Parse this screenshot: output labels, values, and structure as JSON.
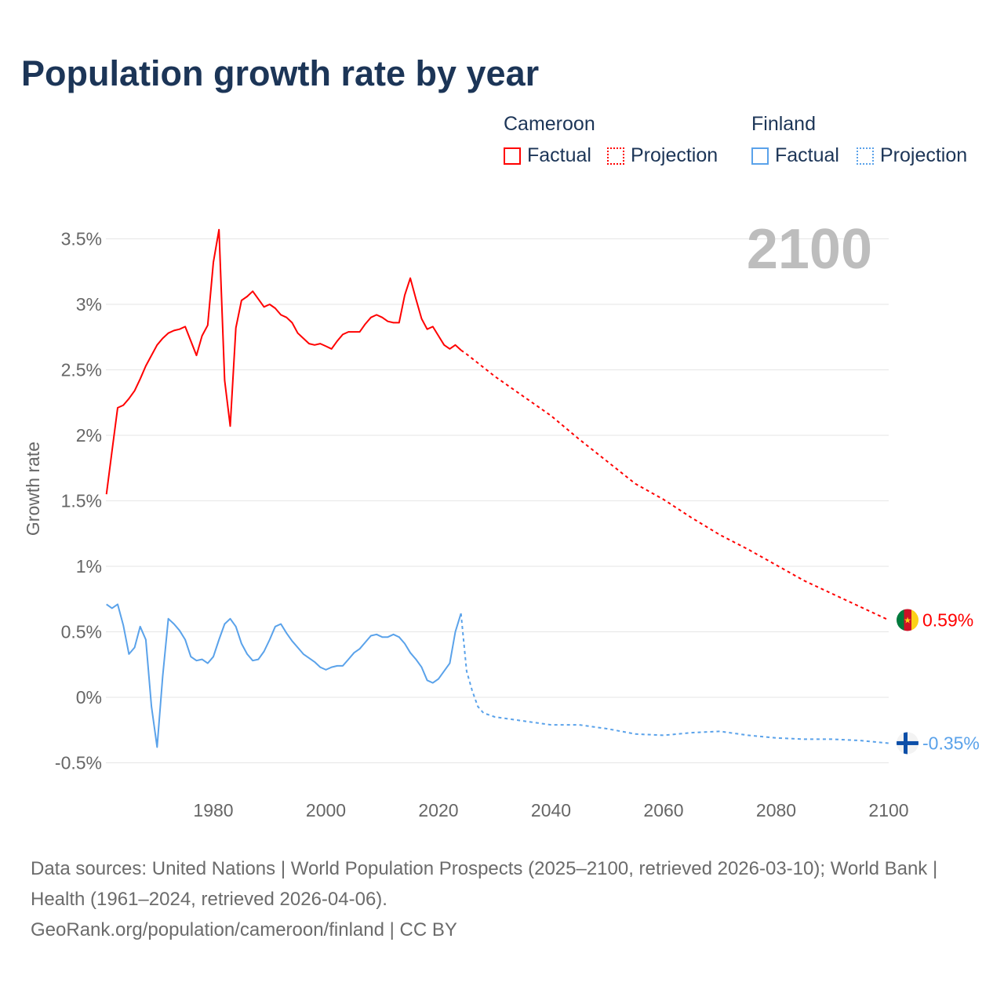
{
  "title": "Population growth rate by year",
  "legend": {
    "groups": [
      {
        "name": "Cameroon",
        "factual": "Factual",
        "projection": "Projection",
        "color": "#ff0000"
      },
      {
        "name": "Finland",
        "factual": "Factual",
        "projection": "Projection",
        "color": "#5aa2ea"
      }
    ]
  },
  "chart_data": {
    "type": "line",
    "title": "Population growth rate by year",
    "ylabel": "Growth rate",
    "xlabel": "",
    "xlim": [
      1961,
      2100
    ],
    "ylim": [
      -0.6,
      3.75
    ],
    "yticks": [
      -0.5,
      0,
      0.5,
      1,
      1.5,
      2,
      2.5,
      3,
      3.5
    ],
    "ytick_labels": [
      "-0.5%",
      "0%",
      "0.5%",
      "1%",
      "1.5%",
      "2%",
      "2.5%",
      "3%",
      "3.5%"
    ],
    "xticks": [
      1980,
      2000,
      2020,
      2040,
      2060,
      2080,
      2100
    ],
    "xtick_labels": [
      "1980",
      "2000",
      "2020",
      "2040",
      "2060",
      "2080",
      "2100"
    ],
    "year_watermark": "2100",
    "grid": true,
    "series": [
      {
        "name": "Cameroon Factual",
        "color": "#ff0000",
        "dash": false,
        "x": [
          1961,
          1962,
          1963,
          1964,
          1965,
          1966,
          1967,
          1968,
          1969,
          1970,
          1971,
          1972,
          1973,
          1974,
          1975,
          1976,
          1977,
          1978,
          1979,
          1980,
          1981,
          1982,
          1983,
          1984,
          1985,
          1986,
          1987,
          1988,
          1989,
          1990,
          1991,
          1992,
          1993,
          1994,
          1995,
          1996,
          1997,
          1998,
          1999,
          2000,
          2001,
          2002,
          2003,
          2004,
          2005,
          2006,
          2007,
          2008,
          2009,
          2010,
          2011,
          2012,
          2013,
          2014,
          2015,
          2016,
          2017,
          2018,
          2019,
          2020,
          2021,
          2022,
          2023,
          2024
        ],
        "y": [
          1.55,
          1.88,
          2.21,
          2.23,
          2.28,
          2.34,
          2.43,
          2.53,
          2.61,
          2.69,
          2.74,
          2.78,
          2.8,
          2.81,
          2.83,
          2.72,
          2.61,
          2.76,
          2.84,
          3.32,
          3.57,
          2.42,
          2.07,
          2.82,
          3.03,
          3.06,
          3.1,
          3.04,
          2.98,
          3.0,
          2.97,
          2.92,
          2.9,
          2.86,
          2.78,
          2.74,
          2.7,
          2.69,
          2.7,
          2.68,
          2.66,
          2.72,
          2.77,
          2.79,
          2.79,
          2.79,
          2.85,
          2.9,
          2.92,
          2.9,
          2.87,
          2.86,
          2.86,
          3.07,
          3.2,
          3.04,
          2.89,
          2.81,
          2.83,
          2.76,
          2.69,
          2.66,
          2.69,
          2.65
        ]
      },
      {
        "name": "Cameroon Projection",
        "color": "#ff0000",
        "dash": true,
        "x": [
          2024,
          2025,
          2030,
          2035,
          2040,
          2045,
          2050,
          2055,
          2060,
          2065,
          2070,
          2075,
          2080,
          2085,
          2090,
          2095,
          2100
        ],
        "y": [
          2.65,
          2.62,
          2.45,
          2.3,
          2.15,
          1.97,
          1.8,
          1.63,
          1.51,
          1.37,
          1.24,
          1.13,
          1.01,
          0.89,
          0.79,
          0.69,
          0.59
        ]
      },
      {
        "name": "Finland Factual",
        "color": "#5aa2ea",
        "dash": false,
        "x": [
          1961,
          1962,
          1963,
          1964,
          1965,
          1966,
          1967,
          1968,
          1969,
          1970,
          1971,
          1972,
          1973,
          1974,
          1975,
          1976,
          1977,
          1978,
          1979,
          1980,
          1981,
          1982,
          1983,
          1984,
          1985,
          1986,
          1987,
          1988,
          1989,
          1990,
          1991,
          1992,
          1993,
          1994,
          1995,
          1996,
          1997,
          1998,
          1999,
          2000,
          2001,
          2002,
          2003,
          2004,
          2005,
          2006,
          2007,
          2008,
          2009,
          2010,
          2011,
          2012,
          2013,
          2014,
          2015,
          2016,
          2017,
          2018,
          2019,
          2020,
          2021,
          2022,
          2023,
          2024
        ],
        "y": [
          0.71,
          0.68,
          0.71,
          0.55,
          0.33,
          0.38,
          0.54,
          0.44,
          -0.07,
          -0.38,
          0.16,
          0.6,
          0.56,
          0.51,
          0.44,
          0.31,
          0.28,
          0.29,
          0.26,
          0.31,
          0.44,
          0.56,
          0.6,
          0.54,
          0.41,
          0.33,
          0.28,
          0.29,
          0.35,
          0.44,
          0.54,
          0.56,
          0.49,
          0.43,
          0.38,
          0.33,
          0.3,
          0.27,
          0.23,
          0.21,
          0.23,
          0.24,
          0.24,
          0.29,
          0.34,
          0.37,
          0.42,
          0.47,
          0.48,
          0.46,
          0.46,
          0.48,
          0.46,
          0.41,
          0.34,
          0.29,
          0.23,
          0.13,
          0.11,
          0.14,
          0.2,
          0.26,
          0.5,
          0.64
        ]
      },
      {
        "name": "Finland Projection",
        "color": "#5aa2ea",
        "dash": true,
        "x": [
          2024,
          2025,
          2026,
          2027,
          2028,
          2030,
          2035,
          2040,
          2045,
          2050,
          2055,
          2060,
          2065,
          2070,
          2075,
          2080,
          2085,
          2090,
          2095,
          2100
        ],
        "y": [
          0.64,
          0.2,
          0.05,
          -0.07,
          -0.12,
          -0.15,
          -0.18,
          -0.21,
          -0.21,
          -0.24,
          -0.28,
          -0.29,
          -0.27,
          -0.26,
          -0.29,
          -0.31,
          -0.32,
          -0.32,
          -0.33,
          -0.35
        ]
      }
    ],
    "end_labels": [
      {
        "country": "Cameroon",
        "value": 0.59,
        "text": "0.59%",
        "color": "#ff0000"
      },
      {
        "country": "Finland",
        "value": -0.35,
        "text": "-0.35%",
        "color": "#5aa2ea"
      }
    ]
  },
  "footer": {
    "sources": "Data sources: United Nations | World Population Prospects (2025–2100, retrieved 2026-03-10); World Bank | Health (1961–2024, retrieved 2026-04-06).",
    "link": "GeoRank.org/population/cameroon/finland | CC BY"
  }
}
